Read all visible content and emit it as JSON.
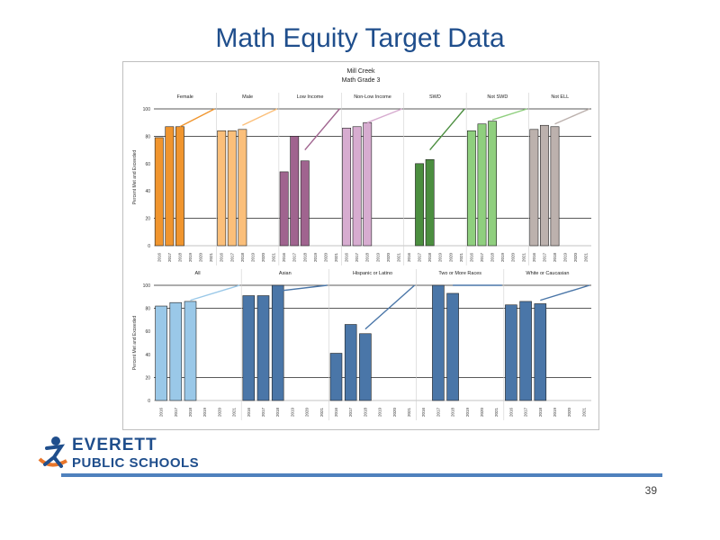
{
  "slide": {
    "title": "Math Equity Target Data",
    "page_number": "39"
  },
  "logo": {
    "line1": "EVERETT",
    "line2": "PUBLIC SCHOOLS"
  },
  "colors": {
    "title": "#1f4e8c",
    "footer_line": "#4f81bd"
  },
  "chart_data": [
    {
      "type": "bar",
      "title": "Mill Creek",
      "subtitle": "Math Grade 3",
      "ylabel": "Percent Met and Exceeded",
      "ylim": [
        0,
        100
      ],
      "yticks": [
        0,
        20,
        40,
        60,
        80,
        100
      ],
      "gridlines": [
        20,
        80,
        100
      ],
      "categories": [
        "2016",
        "2017",
        "2018",
        "2019",
        "2020",
        "2021"
      ],
      "series": [
        {
          "name": "Female",
          "color": "#f0952e",
          "values": [
            79,
            87,
            87,
            null,
            null,
            null
          ],
          "target": [
            87,
            100
          ]
        },
        {
          "name": "Male",
          "color": "#fbbf7a",
          "values": [
            84,
            84,
            85,
            null,
            null,
            null
          ],
          "target": [
            88,
            100
          ]
        },
        {
          "name": "Low Income",
          "color": "#a0648f",
          "values": [
            54,
            80,
            62,
            null,
            null,
            null
          ],
          "target": [
            70,
            100
          ]
        },
        {
          "name": "Non-Low Income",
          "color": "#d7acd0",
          "values": [
            86,
            87,
            90,
            null,
            null,
            null
          ],
          "target": [
            90,
            100
          ]
        },
        {
          "name": "SWD",
          "color": "#4b8e3f",
          "values": [
            null,
            60,
            63,
            null,
            null,
            null
          ],
          "target": [
            70,
            100
          ]
        },
        {
          "name": "Not SWD",
          "color": "#8fcf7e",
          "values": [
            84,
            89,
            91,
            null,
            null,
            null
          ],
          "target": [
            92,
            100
          ]
        },
        {
          "name": "Not ELL",
          "color": "#bcb1ad",
          "values": [
            85,
            88,
            87,
            null,
            null,
            null
          ],
          "target": [
            89,
            100
          ]
        }
      ]
    },
    {
      "type": "bar",
      "ylabel": "Percent Met and Exceeded",
      "ylim": [
        0,
        100
      ],
      "yticks": [
        0,
        20,
        40,
        60,
        80,
        100
      ],
      "gridlines": [
        20,
        80,
        100
      ],
      "categories": [
        "2016",
        "2017",
        "2018",
        "2019",
        "2020",
        "2021"
      ],
      "series": [
        {
          "name": "All",
          "color": "#9ac8e8",
          "values": [
            82,
            85,
            86,
            null,
            null,
            null
          ],
          "target": [
            87,
            100
          ]
        },
        {
          "name": "Asian",
          "color": "#4a76a8",
          "values": [
            91,
            91,
            100,
            null,
            null,
            null
          ],
          "target": [
            95,
            100
          ]
        },
        {
          "name": "Hispanic or Latino",
          "color": "#4a76a8",
          "values": [
            41,
            66,
            58,
            null,
            null,
            null
          ],
          "target": [
            62,
            100
          ]
        },
        {
          "name": "Two or More Races",
          "color": "#4a76a8",
          "values": [
            null,
            100,
            93,
            null,
            null,
            null
          ],
          "target": [
            100,
            100
          ]
        },
        {
          "name": "White or Caucasian",
          "color": "#4a76a8",
          "values": [
            83,
            86,
            84,
            null,
            null,
            null
          ],
          "target": [
            87,
            100
          ]
        }
      ]
    }
  ]
}
